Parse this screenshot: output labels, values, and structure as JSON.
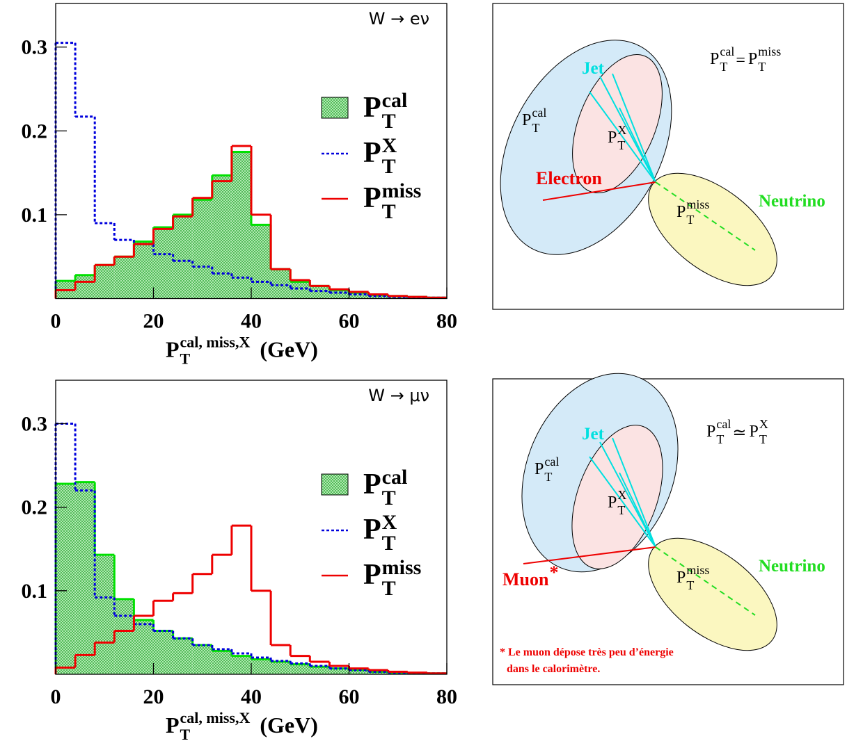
{
  "chart_data": [
    {
      "type": "histogram",
      "annotation": "W → eν",
      "bins": [
        0,
        4,
        8,
        12,
        16,
        20,
        24,
        28,
        32,
        36,
        40,
        44,
        48,
        52,
        56,
        60,
        64,
        68,
        72,
        76,
        80
      ],
      "xlim": [
        0,
        80
      ],
      "ylim": [
        0,
        0.352
      ],
      "xticks": [
        0,
        20,
        40,
        60,
        80
      ],
      "yticks": [
        0.1,
        0.2,
        0.3
      ],
      "grid": false,
      "legend": "right",
      "xlabel": {
        "main": "P",
        "sub": "T",
        "sup": "cal, miss,X",
        "unit": "(GeV)"
      },
      "series": [
        {
          "name": {
            "main": "P",
            "sub": "T",
            "sup": "cal"
          },
          "color": "#00e000",
          "style": "hatched",
          "values": [
            0.021,
            0.028,
            0.04,
            0.05,
            0.068,
            0.085,
            0.1,
            0.118,
            0.147,
            0.175,
            0.088,
            0.035,
            0.02,
            0.015,
            0.01,
            0.007,
            0.004,
            0.003,
            0.002,
            0.001
          ]
        },
        {
          "name": {
            "main": "P",
            "sub": "T",
            "sup": "X"
          },
          "color": "#0000dd",
          "style": "dotted",
          "values": [
            0.305,
            0.217,
            0.09,
            0.07,
            0.065,
            0.053,
            0.045,
            0.038,
            0.03,
            0.025,
            0.02,
            0.016,
            0.012,
            0.009,
            0.007,
            0.005,
            0.003,
            0.002,
            0.001,
            0.001
          ]
        },
        {
          "name": {
            "main": "P",
            "sub": "T",
            "sup": "miss"
          },
          "color": "#ee0000",
          "style": "solid",
          "values": [
            0.01,
            0.02,
            0.04,
            0.05,
            0.065,
            0.083,
            0.098,
            0.12,
            0.14,
            0.182,
            0.1,
            0.035,
            0.022,
            0.015,
            0.011,
            0.008,
            0.005,
            0.003,
            0.002,
            0.001
          ]
        }
      ]
    },
    {
      "type": "histogram",
      "annotation": "W → μν",
      "bins": [
        0,
        4,
        8,
        12,
        16,
        20,
        24,
        28,
        32,
        36,
        40,
        44,
        48,
        52,
        56,
        60,
        64,
        68,
        72,
        76,
        80
      ],
      "xlim": [
        0,
        80
      ],
      "ylim": [
        0,
        0.352
      ],
      "xticks": [
        0,
        20,
        40,
        60,
        80
      ],
      "yticks": [
        0.1,
        0.2,
        0.3
      ],
      "grid": false,
      "legend": "right",
      "xlabel": {
        "main": "P",
        "sub": "T",
        "sup": "cal, miss,X",
        "unit": "(GeV)"
      },
      "series": [
        {
          "name": {
            "main": "P",
            "sub": "T",
            "sup": "cal"
          },
          "color": "#00e000",
          "style": "hatched",
          "values": [
            0.228,
            0.23,
            0.143,
            0.09,
            0.065,
            0.052,
            0.043,
            0.035,
            0.028,
            0.022,
            0.018,
            0.015,
            0.012,
            0.009,
            0.007,
            0.005,
            0.003,
            0.002,
            0.001,
            0.001
          ]
        },
        {
          "name": {
            "main": "P",
            "sub": "T",
            "sup": "X"
          },
          "color": "#0000dd",
          "style": "dotted",
          "values": [
            0.3,
            0.22,
            0.092,
            0.07,
            0.06,
            0.052,
            0.043,
            0.035,
            0.03,
            0.025,
            0.02,
            0.016,
            0.013,
            0.01,
            0.007,
            0.005,
            0.003,
            0.002,
            0.001,
            0.001
          ]
        },
        {
          "name": {
            "main": "P",
            "sub": "T",
            "sup": "miss"
          },
          "color": "#ee0000",
          "style": "solid",
          "values": [
            0.008,
            0.023,
            0.038,
            0.052,
            0.07,
            0.088,
            0.097,
            0.12,
            0.143,
            0.178,
            0.1,
            0.035,
            0.022,
            0.015,
            0.01,
            0.007,
            0.005,
            0.003,
            0.002,
            0.001
          ]
        }
      ]
    }
  ],
  "diagrams": [
    {
      "formula": {
        "lhs": {
          "main": "P",
          "sub": "T",
          "sup": "cal"
        },
        "op": "=",
        "rhs": {
          "main": "P",
          "sub": "T",
          "sup": "miss"
        }
      },
      "jet": "Jet",
      "px": {
        "main": "P",
        "sub": "T",
        "sup": "X"
      },
      "pcal": {
        "main": "P",
        "sub": "T",
        "sup": "cal"
      },
      "lepton": {
        "main": "Electron"
      },
      "pmiss": {
        "main": "P",
        "sub": "T",
        "sup": "miss"
      },
      "neutrino": "Neutrino"
    },
    {
      "formula": {
        "lhs": {
          "main": "P",
          "sub": "T",
          "sup": "cal"
        },
        "op": "≃",
        "rhs": {
          "main": "P",
          "sub": "T",
          "sup": "X"
        }
      },
      "jet": "Jet",
      "px": {
        "main": "P",
        "sub": "T",
        "sup": "X"
      },
      "pcal": {
        "main": "P",
        "sub": "T",
        "sup": "cal"
      },
      "lepton": {
        "main": "Muon",
        "sup": "*"
      },
      "pmiss": {
        "main": "P",
        "sub": "T",
        "sup": "miss"
      },
      "neutrino": "Neutrino",
      "footnote": [
        "* Le muon dépose très peu d’énergie",
        "dans le calorimètre."
      ]
    }
  ]
}
